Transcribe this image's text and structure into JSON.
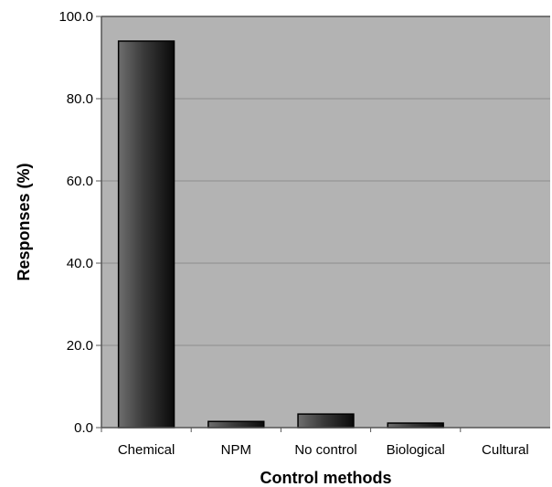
{
  "chart_data": {
    "type": "bar",
    "categories": [
      "Chemical",
      "NPM",
      "No control",
      "Biological",
      "Cultural"
    ],
    "values": [
      94.0,
      1.5,
      3.3,
      1.1,
      0.0
    ],
    "title": "",
    "xlabel": "Control methods",
    "ylabel": "Responses (%)",
    "ylim": [
      0,
      100
    ],
    "yticks": [
      "0.0",
      "20.0",
      "40.0",
      "60.0",
      "80.0",
      "100.0"
    ],
    "grid": true,
    "colors": {
      "plot_background": "#b3b3b3",
      "gridline": "#8c8c8c",
      "bar_light": "#6e6e6e",
      "bar_dark": "#0a0a0a",
      "axis": "#555555"
    }
  }
}
